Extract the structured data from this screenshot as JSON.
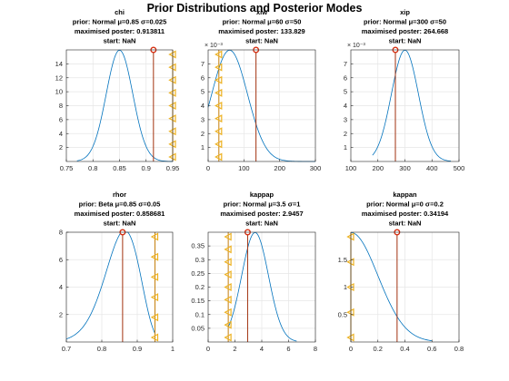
{
  "figure": {
    "title": "Prior Distributions and Posterior Modes"
  },
  "style": {
    "density_color": "#0072BD",
    "mode_line_color": "#A2320F",
    "mode_marker_color": "#D62E10",
    "bound_line_color": "#C47E0C",
    "bound_marker_color": "#EDB120",
    "axis_color": "#262626",
    "grid_color": "#E6E6E6"
  },
  "chart_data": [
    {
      "type": "line",
      "name": "chi",
      "title_lines": [
        "chi",
        "prior: Normal μ=0.85 σ=0.025",
        "maximised poster: 0.913811",
        "start: NaN"
      ],
      "prior": {
        "dist": "normal",
        "mu": 0.85,
        "sigma": 0.025
      },
      "curve_range": [
        0.77,
        0.95
      ],
      "xlim": [
        0.75,
        0.95
      ],
      "ylim": [
        0,
        16
      ],
      "y_scale": 1,
      "xticks": [
        0.75,
        0.8,
        0.85,
        0.9,
        0.95
      ],
      "xtick_labels": [
        "0.75",
        "0.8",
        "0.85",
        "0.9",
        "0.95"
      ],
      "yticks": [
        2,
        4,
        6,
        8,
        10,
        12,
        14
      ],
      "ytick_labels": [
        "2",
        "4",
        "6",
        "8",
        "10",
        "12",
        "14"
      ],
      "exponent_label": "",
      "mode": 0.913811,
      "bounds": [
        0.95
      ]
    },
    {
      "type": "line",
      "name": "xiw",
      "title_lines": [
        "xiw",
        "prior: Normal μ=60 σ=50",
        "maximised poster: 133.829",
        "start: NaN"
      ],
      "prior": {
        "dist": "normal",
        "mu": 60,
        "sigma": 50
      },
      "curve_range": [
        0,
        300
      ],
      "xlim": [
        0,
        300
      ],
      "ylim": [
        0,
        0.008
      ],
      "y_scale": 0.001,
      "xticks": [
        0,
        100,
        200,
        300
      ],
      "xtick_labels": [
        "0",
        "100",
        "200",
        "300"
      ],
      "yticks": [
        1,
        2,
        3,
        4,
        5,
        6,
        7
      ],
      "ytick_labels": [
        "1",
        "2",
        "3",
        "4",
        "5",
        "6",
        "7"
      ],
      "exponent_label": "× 10⁻³",
      "mode": 133.829,
      "bounds": [
        30
      ]
    },
    {
      "type": "line",
      "name": "xip",
      "title_lines": [
        "xip",
        "prior: Normal μ=300 σ=50",
        "maximised poster: 264.668",
        "start: NaN"
      ],
      "prior": {
        "dist": "normal",
        "mu": 300,
        "sigma": 50
      },
      "curve_range": [
        180,
        470
      ],
      "xlim": [
        100,
        500
      ],
      "ylim": [
        0,
        0.008
      ],
      "y_scale": 0.001,
      "xticks": [
        100,
        200,
        300,
        400,
        500
      ],
      "xtick_labels": [
        "100",
        "200",
        "300",
        "400",
        "500"
      ],
      "yticks": [
        1,
        2,
        3,
        4,
        5,
        6,
        7
      ],
      "ytick_labels": [
        "1",
        "2",
        "3",
        "4",
        "5",
        "6",
        "7"
      ],
      "exponent_label": "× 10⁻³",
      "mode": 264.668,
      "bounds": []
    },
    {
      "type": "line",
      "name": "rhor",
      "title_lines": [
        "rhor",
        "prior: Beta μ=0.85 σ=0.05",
        "maximised poster: 0.858681",
        "start: NaN"
      ],
      "prior": {
        "dist": "beta",
        "mu": 0.85,
        "sigma": 0.05
      },
      "curve_range": [
        0.7,
        0.95
      ],
      "xlim": [
        0.7,
        1.0
      ],
      "ylim": [
        0,
        8
      ],
      "y_scale": 1,
      "xticks": [
        0.7,
        0.8,
        0.9,
        1.0
      ],
      "xtick_labels": [
        "0.7",
        "0.8",
        "0.9",
        "1"
      ],
      "yticks": [
        2,
        4,
        6,
        8
      ],
      "ytick_labels": [
        "2",
        "4",
        "6",
        "8"
      ],
      "exponent_label": "",
      "mode": 0.858681,
      "bounds": [
        0.95
      ]
    },
    {
      "type": "line",
      "name": "kappap",
      "title_lines": [
        "kappap",
        "prior: Normal μ=3.5 σ=1",
        "maximised poster: 2.9457",
        "start: NaN"
      ],
      "prior": {
        "dist": "normal",
        "mu": 3.5,
        "sigma": 1
      },
      "curve_range": [
        1.5,
        6.6
      ],
      "xlim": [
        0,
        8
      ],
      "ylim": [
        0,
        0.4
      ],
      "y_scale": 1,
      "xticks": [
        0,
        2,
        4,
        6,
        8
      ],
      "xtick_labels": [
        "0",
        "2",
        "4",
        "6",
        "8"
      ],
      "yticks": [
        0.05,
        0.1,
        0.15,
        0.2,
        0.25,
        0.3,
        0.35
      ],
      "ytick_labels": [
        "0.05",
        "0.1",
        "0.15",
        "0.2",
        "0.25",
        "0.3",
        "0.35"
      ],
      "exponent_label": "",
      "mode": 2.9457,
      "bounds": [
        1.5
      ]
    },
    {
      "type": "line",
      "name": "kappan",
      "title_lines": [
        "kappan",
        "prior: Normal μ=0 σ=0.2",
        "maximised poster: 0.34194",
        "start: NaN"
      ],
      "prior": {
        "dist": "normal",
        "mu": 0,
        "sigma": 0.2
      },
      "curve_range": [
        0,
        0.6
      ],
      "xlim": [
        0,
        0.8
      ],
      "ylim": [
        0,
        2
      ],
      "y_scale": 1,
      "xticks": [
        0,
        0.2,
        0.4,
        0.6,
        0.8
      ],
      "xtick_labels": [
        "0",
        "0.2",
        "0.4",
        "0.6",
        "0.8"
      ],
      "yticks": [
        0.5,
        1,
        1.5
      ],
      "ytick_labels": [
        "0.5",
        "1",
        "1.5"
      ],
      "exponent_label": "",
      "mode": 0.34194,
      "bounds": [
        0
      ]
    }
  ]
}
